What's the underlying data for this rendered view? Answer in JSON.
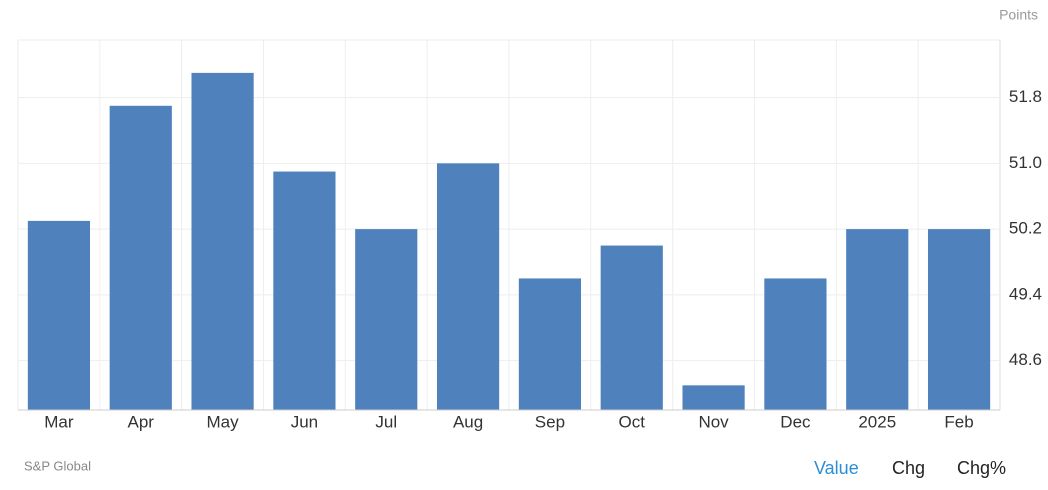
{
  "chart_data": {
    "type": "bar",
    "unit_label": "Points",
    "source": "S&P Global",
    "categories": [
      "Mar",
      "Apr",
      "May",
      "Jun",
      "Jul",
      "Aug",
      "Sep",
      "Oct",
      "Nov",
      "Dec",
      "2025",
      "Feb"
    ],
    "values": [
      50.3,
      51.7,
      52.1,
      50.9,
      50.2,
      51.0,
      49.6,
      50.0,
      48.3,
      49.6,
      50.2,
      50.2
    ],
    "color": "#4f81bd",
    "ylim": [
      48.0,
      52.5
    ],
    "yticks": [
      48.6,
      49.4,
      50.2,
      {
        "value": 51,
        "label": "51.0"
      },
      51.8
    ],
    "grid": true
  },
  "buttons": [
    "Value",
    "Chg",
    "Chg%"
  ]
}
